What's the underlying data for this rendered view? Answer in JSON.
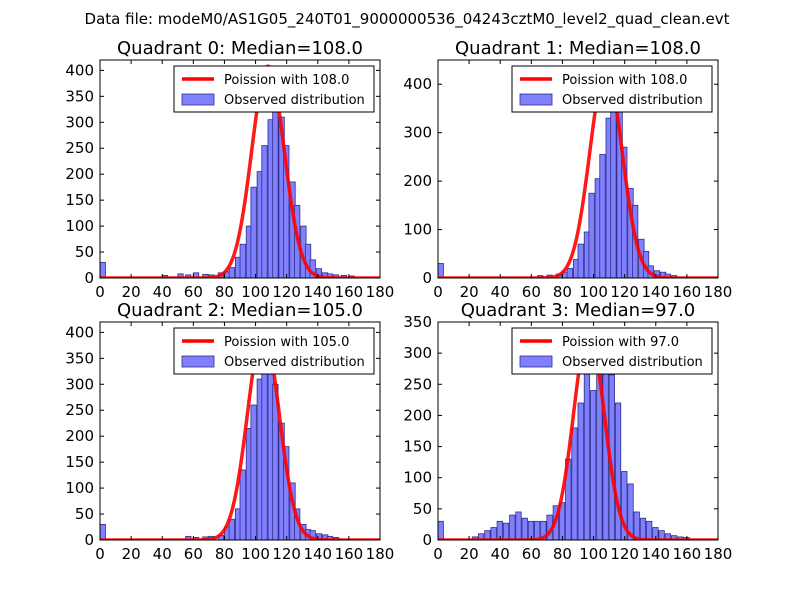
{
  "figure_title": "Data file: modeM0/AS1G05_240T01_9000000536_04243cztM0_level2_quad_clean.evt",
  "colors": {
    "bar_fill": "#8080ff",
    "bar_edge": "#2e2e8a",
    "curve": "#ff0000",
    "axis": "#000000"
  },
  "chart_data": [
    {
      "type": "bar",
      "title": "Quadrant 0: Median=108.0",
      "xlim": [
        0,
        180
      ],
      "ylim": [
        0,
        420
      ],
      "xticks": [
        0,
        20,
        40,
        60,
        80,
        100,
        120,
        140,
        160,
        180
      ],
      "yticks": [
        0,
        50,
        100,
        150,
        200,
        250,
        300,
        350,
        400
      ],
      "legend": {
        "position": "top-right",
        "curve_label": "Poission with 108.0",
        "bar_label": "Observed distribution"
      },
      "bin_width": 3.5,
      "bins": [
        [
          0,
          30
        ],
        [
          40,
          5
        ],
        [
          50,
          8
        ],
        [
          55,
          6
        ],
        [
          60,
          10
        ],
        [
          66,
          7
        ],
        [
          70,
          6
        ],
        [
          76,
          10
        ],
        [
          80,
          12
        ],
        [
          83,
          20
        ],
        [
          87,
          40
        ],
        [
          90,
          65
        ],
        [
          94,
          100
        ],
        [
          97,
          175
        ],
        [
          101,
          205
        ],
        [
          104,
          255
        ],
        [
          108,
          305
        ],
        [
          111,
          345
        ],
        [
          115,
          310
        ],
        [
          118,
          255
        ],
        [
          122,
          185
        ],
        [
          125,
          140
        ],
        [
          129,
          100
        ],
        [
          132,
          65
        ],
        [
          135,
          35
        ],
        [
          139,
          18
        ],
        [
          143,
          10
        ],
        [
          146,
          8
        ],
        [
          150,
          6
        ],
        [
          155,
          5
        ],
        [
          160,
          4
        ]
      ],
      "poisson_mean": 108,
      "poisson_peak": 408,
      "poisson_sigma": 10.4
    },
    {
      "type": "bar",
      "title": "Quadrant 1: Median=108.0",
      "xlim": [
        0,
        180
      ],
      "ylim": [
        0,
        450
      ],
      "xticks": [
        0,
        20,
        40,
        60,
        80,
        100,
        120,
        140,
        160,
        180
      ],
      "yticks": [
        0,
        100,
        200,
        300,
        400
      ],
      "legend": {
        "position": "top-right",
        "curve_label": "Poission with 108.0",
        "bar_label": "Observed distribution"
      },
      "bin_width": 3.5,
      "bins": [
        [
          0,
          30
        ],
        [
          64,
          5
        ],
        [
          70,
          6
        ],
        [
          76,
          8
        ],
        [
          80,
          12
        ],
        [
          83,
          20
        ],
        [
          87,
          38
        ],
        [
          90,
          70
        ],
        [
          94,
          95
        ],
        [
          97,
          175
        ],
        [
          101,
          205
        ],
        [
          104,
          255
        ],
        [
          108,
          330
        ],
        [
          111,
          410
        ],
        [
          115,
          365
        ],
        [
          118,
          270
        ],
        [
          122,
          185
        ],
        [
          125,
          150
        ],
        [
          129,
          80
        ],
        [
          132,
          55
        ],
        [
          135,
          25
        ],
        [
          139,
          15
        ],
        [
          143,
          12
        ],
        [
          146,
          8
        ],
        [
          150,
          5
        ]
      ],
      "poisson_mean": 108,
      "poisson_peak": 430,
      "poisson_sigma": 10.4
    },
    {
      "type": "bar",
      "title": "Quadrant 2: Median=105.0",
      "xlim": [
        0,
        180
      ],
      "ylim": [
        0,
        420
      ],
      "xticks": [
        0,
        20,
        40,
        60,
        80,
        100,
        120,
        140,
        160,
        180
      ],
      "yticks": [
        0,
        50,
        100,
        150,
        200,
        250,
        300,
        350,
        400
      ],
      "legend": {
        "position": "top-right",
        "curve_label": "Poission with 105.0",
        "bar_label": "Observed distribution"
      },
      "bin_width": 3.5,
      "bins": [
        [
          0,
          30
        ],
        [
          55,
          7
        ],
        [
          60,
          5
        ],
        [
          66,
          6
        ],
        [
          70,
          7
        ],
        [
          76,
          9
        ],
        [
          80,
          25
        ],
        [
          83,
          40
        ],
        [
          87,
          60
        ],
        [
          90,
          135
        ],
        [
          94,
          215
        ],
        [
          97,
          260
        ],
        [
          101,
          310
        ],
        [
          104,
          400
        ],
        [
          108,
          340
        ],
        [
          111,
          300
        ],
        [
          115,
          225
        ],
        [
          118,
          180
        ],
        [
          122,
          110
        ],
        [
          125,
          60
        ],
        [
          129,
          30
        ],
        [
          132,
          20
        ],
        [
          135,
          18
        ],
        [
          139,
          12
        ],
        [
          143,
          10
        ],
        [
          146,
          7
        ],
        [
          150,
          5
        ]
      ],
      "poisson_mean": 105,
      "poisson_peak": 402,
      "poisson_sigma": 10.2
    },
    {
      "type": "bar",
      "title": "Quadrant 3: Median=97.0",
      "xlim": [
        0,
        180
      ],
      "ylim": [
        0,
        350
      ],
      "xticks": [
        0,
        20,
        40,
        60,
        80,
        100,
        120,
        140,
        160,
        180
      ],
      "yticks": [
        0,
        50,
        100,
        150,
        200,
        250,
        300,
        350
      ],
      "legend": {
        "position": "top-right",
        "curve_label": "Poission with 97.0",
        "bar_label": "Observed distribution"
      },
      "bin_width": 3.5,
      "bins": [
        [
          0,
          30
        ],
        [
          22,
          5
        ],
        [
          26,
          10
        ],
        [
          30,
          15
        ],
        [
          34,
          20
        ],
        [
          38,
          30
        ],
        [
          42,
          27
        ],
        [
          46,
          40
        ],
        [
          50,
          45
        ],
        [
          54,
          35
        ],
        [
          58,
          30
        ],
        [
          62,
          30
        ],
        [
          66,
          30
        ],
        [
          70,
          40
        ],
        [
          74,
          55
        ],
        [
          78,
          60
        ],
        [
          82,
          130
        ],
        [
          86,
          180
        ],
        [
          90,
          220
        ],
        [
          94,
          270
        ],
        [
          98,
          240
        ],
        [
          102,
          300
        ],
        [
          106,
          335
        ],
        [
          110,
          265
        ],
        [
          114,
          220
        ],
        [
          118,
          110
        ],
        [
          122,
          90
        ],
        [
          126,
          45
        ],
        [
          130,
          35
        ],
        [
          134,
          30
        ],
        [
          138,
          20
        ],
        [
          142,
          15
        ],
        [
          146,
          10
        ],
        [
          150,
          7
        ],
        [
          154,
          5
        ],
        [
          158,
          4
        ]
      ],
      "poisson_mean": 97,
      "poisson_peak": 335,
      "poisson_sigma": 9.85
    }
  ]
}
